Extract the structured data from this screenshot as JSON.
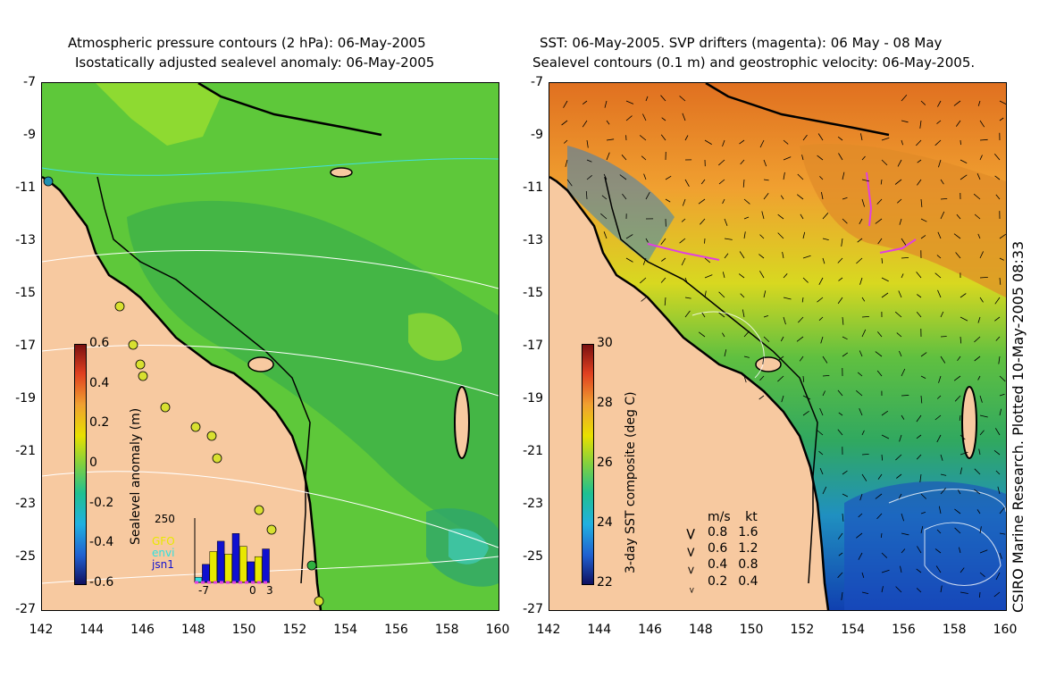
{
  "left_panel": {
    "title_line1": "Atmospheric pressure contours (2 hPa): 06-May-2005",
    "title_line2": "Isostatically adjusted sealevel anomaly: 06-May-2005",
    "colorbar_label": "Sealevel anomaly (m)",
    "colorbar_ticks": [
      "0.6",
      "0.4",
      "0.2",
      "0",
      "-0.2",
      "-0.4",
      "-0.6"
    ],
    "inset": {
      "ymax_label": "250",
      "x_ticks": [
        "-7",
        "0",
        "3"
      ],
      "legend": [
        {
          "label": "GFO",
          "color": "#e8e800"
        },
        {
          "label": "envi",
          "color": "#30e0e0"
        },
        {
          "label": "jsn1",
          "color": "#1010d0"
        }
      ],
      "bars": [
        {
          "x": -7,
          "count": 20,
          "color": "#30e0e0"
        },
        {
          "x": -6,
          "count": 70,
          "color": "#1010d0"
        },
        {
          "x": -5,
          "count": 120,
          "color": "#e8e800"
        },
        {
          "x": -4,
          "count": 160,
          "color": "#1010d0"
        },
        {
          "x": -3,
          "count": 110,
          "color": "#e8e800"
        },
        {
          "x": -2,
          "count": 190,
          "color": "#1010d0"
        },
        {
          "x": -1,
          "count": 140,
          "color": "#e8e800"
        },
        {
          "x": 0,
          "count": 80,
          "color": "#1010d0"
        },
        {
          "x": 1,
          "count": 100,
          "color": "#e8e800"
        },
        {
          "x": 2,
          "count": 130,
          "color": "#1010d0"
        }
      ]
    }
  },
  "right_panel": {
    "title_line1": "SST: 06-May-2005. SVP drifters (magenta): 06 May - 08 May",
    "title_line2": "Sealevel contours (0.1 m) and geostrophic velocity: 06-May-2005.",
    "colorbar_label": "3-day SST composite (deg C)",
    "colorbar_ticks": [
      "30",
      "28",
      "26",
      "24",
      "22"
    ],
    "velocity_legend": {
      "header_ms": "m/s",
      "header_kt": "kt",
      "rows": [
        {
          "ms": "0.8",
          "kt": "1.6"
        },
        {
          "ms": "0.6",
          "kt": "1.2"
        },
        {
          "ms": "0.4",
          "kt": "0.8"
        },
        {
          "ms": "0.2",
          "kt": "0.4"
        }
      ]
    },
    "credit": "CSIRO Marine Research. Plotted 10-May-2005 08:33"
  },
  "axes": {
    "y_ticks": [
      "-7",
      "-9",
      "-11",
      "-13",
      "-15",
      "-17",
      "-19",
      "-21",
      "-23",
      "-25",
      "-27"
    ],
    "x_ticks": [
      "142",
      "144",
      "146",
      "148",
      "150",
      "152",
      "154",
      "156",
      "158",
      "160"
    ]
  },
  "colors": {
    "land": "#f7c9a0",
    "sla_ocean": "#5ec83a",
    "sst_warm": "#f0a030",
    "sst_cool": "#2f6fd0",
    "coast": "#000000",
    "contour": "#ffffff",
    "drifter": "#e040e0"
  }
}
